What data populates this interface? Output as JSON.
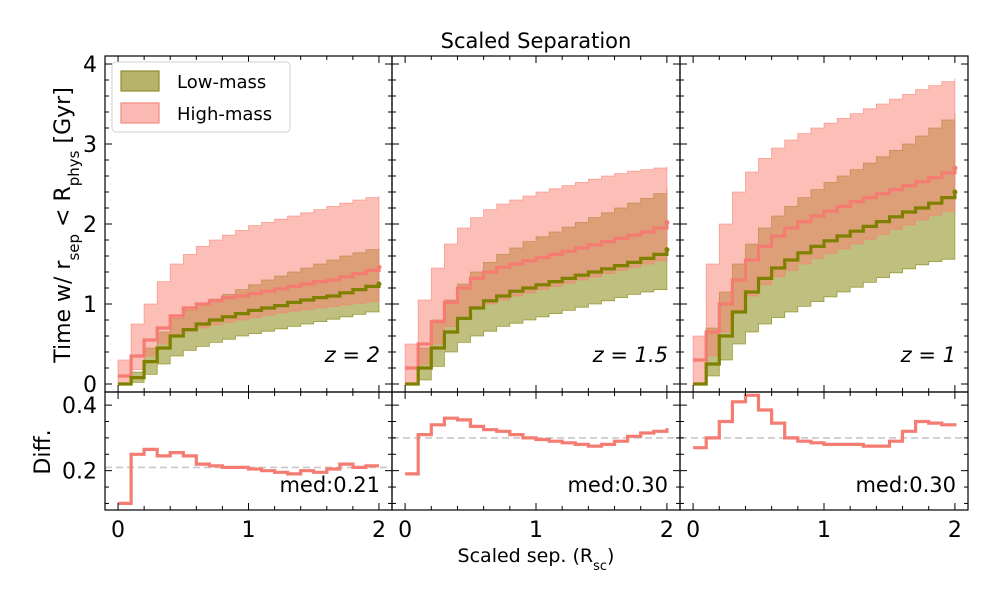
{
  "figure": {
    "title": "Scaled Separation",
    "ylabel_top": {
      "main": "Time w/ r",
      "sub1": "sep",
      "mid": " < R",
      "sub2": "phys",
      "tail": " [Gyr]"
    },
    "ylabel_bottom": "Diff.",
    "xlabel": {
      "main": "Scaled sep. (R",
      "sub": "sc",
      "tail": ")"
    },
    "legend": [
      {
        "label": "Low-mass",
        "fill": "#b7b36a",
        "edge": "#8f8b2f"
      },
      {
        "label": "High-mass",
        "fill": "#fbbab4",
        "edge": "#f48a80"
      }
    ],
    "colors": {
      "low_line": "#7f7f00",
      "high_line": "#f47c72",
      "low_band": "#808000",
      "high_band": "#fa8072",
      "median_ref": "#c8c8c8"
    },
    "x_ticks": [
      "0",
      "1",
      "2"
    ],
    "top_y_ticks": [
      "0",
      "1",
      "2",
      "3",
      "4"
    ],
    "bottom_y_ticks": [
      "0.2",
      "0.4"
    ]
  },
  "chart_data": [
    {
      "type": "line",
      "panel": "top",
      "annotation": "z = 2",
      "xlim": [
        -0.1,
        2.1
      ],
      "ylim": [
        -0.1,
        4.1
      ],
      "x": [
        0,
        0.1,
        0.2,
        0.3,
        0.4,
        0.5,
        0.6,
        0.7,
        0.8,
        0.9,
        1.0,
        1.1,
        1.2,
        1.3,
        1.4,
        1.5,
        1.6,
        1.7,
        1.8,
        1.9,
        2.0
      ],
      "series": [
        {
          "name": "Low-mass",
          "median": [
            0.0,
            0.08,
            0.28,
            0.45,
            0.6,
            0.68,
            0.75,
            0.8,
            0.84,
            0.88,
            0.92,
            0.95,
            0.98,
            1.02,
            1.05,
            1.08,
            1.1,
            1.14,
            1.18,
            1.22,
            1.25
          ],
          "lower": [
            0.0,
            0.02,
            0.12,
            0.25,
            0.35,
            0.42,
            0.47,
            0.52,
            0.56,
            0.6,
            0.63,
            0.66,
            0.69,
            0.72,
            0.75,
            0.78,
            0.81,
            0.84,
            0.87,
            0.9,
            0.92
          ],
          "upper": [
            0.0,
            0.15,
            0.45,
            0.65,
            0.82,
            0.92,
            1.0,
            1.06,
            1.12,
            1.18,
            1.24,
            1.3,
            1.35,
            1.4,
            1.45,
            1.5,
            1.55,
            1.6,
            1.64,
            1.68,
            1.7
          ]
        },
        {
          "name": "High-mass",
          "median": [
            0.1,
            0.35,
            0.55,
            0.7,
            0.85,
            0.95,
            1.0,
            1.04,
            1.08,
            1.1,
            1.13,
            1.16,
            1.19,
            1.22,
            1.25,
            1.28,
            1.3,
            1.34,
            1.38,
            1.42,
            1.46
          ],
          "lower": [
            0.0,
            0.18,
            0.35,
            0.5,
            0.6,
            0.66,
            0.7,
            0.74,
            0.77,
            0.8,
            0.83,
            0.86,
            0.89,
            0.91,
            0.93,
            0.95,
            0.97,
            0.99,
            1.01,
            1.03,
            1.05
          ],
          "upper": [
            0.3,
            0.75,
            1.0,
            1.28,
            1.5,
            1.62,
            1.72,
            1.8,
            1.86,
            1.92,
            1.98,
            2.02,
            2.06,
            2.1,
            2.14,
            2.18,
            2.22,
            2.26,
            2.3,
            2.33,
            2.35
          ]
        }
      ]
    },
    {
      "type": "line",
      "panel": "top",
      "annotation": "z = 1.5",
      "xlim": [
        -0.1,
        2.1
      ],
      "ylim": [
        -0.1,
        4.1
      ],
      "x": [
        0,
        0.1,
        0.2,
        0.3,
        0.4,
        0.5,
        0.6,
        0.7,
        0.8,
        0.9,
        1.0,
        1.1,
        1.2,
        1.3,
        1.4,
        1.5,
        1.6,
        1.7,
        1.8,
        1.9,
        2.0
      ],
      "series": [
        {
          "name": "Low-mass",
          "median": [
            0.0,
            0.2,
            0.45,
            0.65,
            0.82,
            0.95,
            1.04,
            1.1,
            1.16,
            1.2,
            1.24,
            1.28,
            1.32,
            1.36,
            1.4,
            1.44,
            1.48,
            1.52,
            1.57,
            1.62,
            1.68
          ],
          "lower": [
            0.0,
            0.05,
            0.22,
            0.4,
            0.52,
            0.6,
            0.66,
            0.72,
            0.76,
            0.8,
            0.84,
            0.88,
            0.92,
            0.96,
            1.0,
            1.04,
            1.08,
            1.12,
            1.15,
            1.18,
            1.2
          ],
          "upper": [
            0.0,
            0.45,
            0.8,
            1.05,
            1.25,
            1.4,
            1.52,
            1.62,
            1.7,
            1.78,
            1.84,
            1.9,
            1.96,
            2.02,
            2.08,
            2.14,
            2.2,
            2.26,
            2.32,
            2.38,
            2.45
          ]
        },
        {
          "name": "High-mass",
          "median": [
            0.2,
            0.5,
            0.78,
            1.02,
            1.2,
            1.32,
            1.4,
            1.46,
            1.5,
            1.54,
            1.58,
            1.62,
            1.66,
            1.7,
            1.74,
            1.78,
            1.82,
            1.86,
            1.9,
            1.95,
            2.02
          ],
          "lower": [
            0.0,
            0.25,
            0.5,
            0.72,
            0.86,
            0.95,
            1.0,
            1.05,
            1.1,
            1.14,
            1.18,
            1.22,
            1.26,
            1.3,
            1.34,
            1.38,
            1.42,
            1.46,
            1.5,
            1.54,
            1.58
          ],
          "upper": [
            0.5,
            1.05,
            1.45,
            1.75,
            1.95,
            2.08,
            2.18,
            2.25,
            2.3,
            2.35,
            2.4,
            2.44,
            2.48,
            2.52,
            2.56,
            2.6,
            2.63,
            2.66,
            2.68,
            2.7,
            2.72
          ]
        }
      ]
    },
    {
      "type": "line",
      "panel": "top",
      "annotation": "z = 1",
      "xlim": [
        -0.1,
        2.1
      ],
      "ylim": [
        -0.1,
        4.1
      ],
      "x": [
        0,
        0.1,
        0.2,
        0.3,
        0.4,
        0.5,
        0.6,
        0.7,
        0.8,
        0.9,
        1.0,
        1.1,
        1.2,
        1.3,
        1.4,
        1.5,
        1.6,
        1.7,
        1.8,
        1.9,
        2.0
      ],
      "series": [
        {
          "name": "Low-mass",
          "median": [
            0.0,
            0.25,
            0.6,
            0.9,
            1.15,
            1.32,
            1.45,
            1.55,
            1.64,
            1.72,
            1.79,
            1.85,
            1.91,
            1.97,
            2.03,
            2.09,
            2.15,
            2.2,
            2.26,
            2.33,
            2.4
          ],
          "lower": [
            0.0,
            0.1,
            0.3,
            0.5,
            0.65,
            0.75,
            0.83,
            0.9,
            0.97,
            1.03,
            1.09,
            1.15,
            1.21,
            1.27,
            1.33,
            1.39,
            1.44,
            1.49,
            1.53,
            1.56,
            1.58
          ],
          "upper": [
            0.0,
            0.7,
            1.15,
            1.5,
            1.75,
            1.95,
            2.1,
            2.22,
            2.33,
            2.43,
            2.52,
            2.6,
            2.68,
            2.76,
            2.84,
            2.92,
            3.0,
            3.1,
            3.2,
            3.3,
            3.38
          ]
        },
        {
          "name": "High-mass",
          "median": [
            0.3,
            0.65,
            1.0,
            1.3,
            1.55,
            1.72,
            1.85,
            1.95,
            2.03,
            2.1,
            2.16,
            2.22,
            2.28,
            2.33,
            2.38,
            2.43,
            2.48,
            2.53,
            2.58,
            2.64,
            2.7
          ],
          "lower": [
            0.0,
            0.35,
            0.65,
            0.9,
            1.1,
            1.24,
            1.34,
            1.42,
            1.5,
            1.57,
            1.63,
            1.69,
            1.75,
            1.81,
            1.87,
            1.93,
            1.99,
            2.05,
            2.11,
            2.16,
            2.2
          ],
          "upper": [
            0.6,
            1.5,
            2.0,
            2.4,
            2.65,
            2.82,
            2.95,
            3.05,
            3.13,
            3.2,
            3.26,
            3.32,
            3.38,
            3.44,
            3.5,
            3.56,
            3.62,
            3.68,
            3.73,
            3.78,
            3.82
          ]
        }
      ]
    },
    {
      "type": "line",
      "panel": "bottom",
      "annotation": "med:0.21",
      "xlim": [
        -0.1,
        2.1
      ],
      "ylim": [
        0.08,
        0.44
      ],
      "median_value": 0.21,
      "x": [
        0,
        0.1,
        0.2,
        0.3,
        0.4,
        0.5,
        0.6,
        0.7,
        0.8,
        0.9,
        1.0,
        1.1,
        1.2,
        1.3,
        1.4,
        1.5,
        1.6,
        1.7,
        1.8,
        1.9,
        2.0
      ],
      "series": [
        {
          "name": "High-mass",
          "values": [
            0.1,
            0.25,
            0.265,
            0.245,
            0.255,
            0.245,
            0.22,
            0.215,
            0.21,
            0.21,
            0.205,
            0.2,
            0.195,
            0.19,
            0.2,
            0.195,
            0.205,
            0.22,
            0.21,
            0.215,
            0.215
          ]
        }
      ]
    },
    {
      "type": "line",
      "panel": "bottom",
      "annotation": "med:0.30",
      "xlim": [
        -0.1,
        2.1
      ],
      "ylim": [
        0.08,
        0.44
      ],
      "median_value": 0.3,
      "x": [
        0,
        0.1,
        0.2,
        0.3,
        0.4,
        0.5,
        0.6,
        0.7,
        0.8,
        0.9,
        1.0,
        1.1,
        1.2,
        1.3,
        1.4,
        1.5,
        1.6,
        1.7,
        1.8,
        1.9,
        2.0
      ],
      "series": [
        {
          "name": "High-mass",
          "values": [
            0.19,
            0.31,
            0.34,
            0.36,
            0.355,
            0.335,
            0.325,
            0.32,
            0.31,
            0.3,
            0.295,
            0.29,
            0.285,
            0.28,
            0.275,
            0.28,
            0.29,
            0.305,
            0.315,
            0.32,
            0.33
          ]
        }
      ]
    },
    {
      "type": "line",
      "panel": "bottom",
      "annotation": "med:0.30",
      "xlim": [
        -0.1,
        2.1
      ],
      "ylim": [
        0.08,
        0.44
      ],
      "median_value": 0.3,
      "x": [
        0,
        0.1,
        0.2,
        0.3,
        0.4,
        0.5,
        0.6,
        0.7,
        0.8,
        0.9,
        1.0,
        1.1,
        1.2,
        1.3,
        1.4,
        1.5,
        1.6,
        1.7,
        1.8,
        1.9,
        2.0
      ],
      "series": [
        {
          "name": "High-mass",
          "values": [
            0.27,
            0.3,
            0.35,
            0.41,
            0.43,
            0.385,
            0.345,
            0.3,
            0.29,
            0.285,
            0.28,
            0.28,
            0.28,
            0.275,
            0.275,
            0.29,
            0.32,
            0.35,
            0.345,
            0.34,
            0.335
          ]
        }
      ]
    }
  ]
}
